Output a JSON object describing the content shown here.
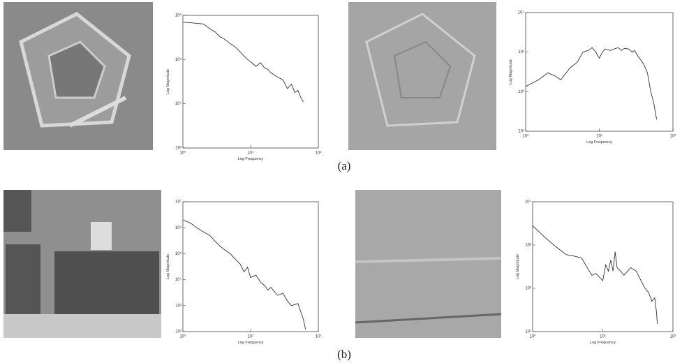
{
  "chart_data": [
    {
      "type": "line",
      "x_label": "Log Frequency",
      "y_label": "Log Magnitude",
      "log_x": true,
      "log_y": true,
      "color": "#333333",
      "xlim": [
        1,
        100
      ],
      "xticks": [
        {
          "value": 1,
          "label": "10⁰"
        },
        {
          "value": 10,
          "label": "10¹"
        },
        {
          "value": 100,
          "label": "10²"
        }
      ],
      "ylim": [
        1000,
        1000000
      ],
      "yticks": [
        {
          "value": 1000,
          "label": "10³"
        },
        {
          "value": 10000,
          "label": "10⁴"
        },
        {
          "value": 100000,
          "label": "10⁵"
        },
        {
          "value": 1000000,
          "label": "10⁶"
        }
      ],
      "x": [
        1,
        1.3,
        1.6,
        2,
        2.5,
        3,
        3.5,
        4,
        5,
        6,
        7,
        8,
        9,
        10,
        12,
        14,
        16,
        18,
        20,
        25,
        30,
        35,
        40,
        45,
        50,
        55,
        60
      ],
      "values": [
        700000,
        680000,
        660000,
        640000,
        500000,
        420000,
        330000,
        300000,
        230000,
        190000,
        150000,
        120000,
        100000,
        90000,
        70000,
        85000,
        65000,
        60000,
        50000,
        40000,
        35000,
        22000,
        28000,
        18000,
        20000,
        14000,
        11000
      ]
    },
    {
      "type": "line",
      "x_label": "Log Frequency",
      "y_label": "Log Magnitude",
      "log_x": true,
      "log_y": true,
      "color": "#333333",
      "xlim": [
        1,
        100
      ],
      "xticks": [
        {
          "value": 1,
          "label": "10⁰"
        },
        {
          "value": 10,
          "label": "10¹"
        },
        {
          "value": 100,
          "label": "10²"
        }
      ],
      "ylim": [
        10,
        10000
      ],
      "yticks": [
        {
          "value": 10,
          "label": "10¹"
        },
        {
          "value": 100,
          "label": "10²"
        },
        {
          "value": 1000,
          "label": "10³"
        },
        {
          "value": 10000,
          "label": "10⁴"
        }
      ],
      "x": [
        1,
        1.5,
        2,
        2.5,
        3,
        4,
        5,
        6,
        7,
        8,
        9,
        10,
        11,
        12,
        14,
        16,
        18,
        20,
        22,
        25,
        28,
        30,
        35,
        40,
        45,
        50,
        55,
        60
      ],
      "values": [
        135,
        200,
        300,
        250,
        200,
        400,
        550,
        1000,
        1100,
        1300,
        1000,
        700,
        1000,
        1200,
        1100,
        1200,
        1300,
        1100,
        1250,
        1200,
        1000,
        1100,
        700,
        500,
        300,
        100,
        50,
        20
      ]
    },
    {
      "type": "line",
      "x_label": "Log Frequency",
      "y_label": "Log Magnitude",
      "log_x": true,
      "log_y": true,
      "color": "#333333",
      "xlim": [
        1,
        100
      ],
      "xticks": [
        {
          "value": 1,
          "label": "10⁰"
        },
        {
          "value": 10,
          "label": "10¹"
        },
        {
          "value": 100,
          "label": "10²"
        }
      ],
      "ylim": [
        100,
        10000000
      ],
      "yticks": [
        {
          "value": 100,
          "label": "10²"
        },
        {
          "value": 1000,
          "label": "10³"
        },
        {
          "value": 10000,
          "label": "10⁴"
        },
        {
          "value": 100000,
          "label": "10⁵"
        },
        {
          "value": 1000000,
          "label": "10⁶"
        },
        {
          "value": 10000000,
          "label": "10⁷"
        }
      ],
      "x": [
        1,
        1.3,
        1.6,
        2,
        2.5,
        3,
        3.5,
        4,
        5,
        6,
        7,
        8,
        9,
        10,
        12,
        14,
        16,
        18,
        20,
        25,
        30,
        35,
        40,
        50,
        60,
        65
      ],
      "values": [
        2000000,
        1500000,
        1000000,
        700000,
        500000,
        300000,
        200000,
        150000,
        100000,
        60000,
        40000,
        20000,
        30000,
        12000,
        15000,
        8000,
        6000,
        4000,
        5000,
        2500,
        3000,
        1500,
        1000,
        1200,
        300,
        120
      ]
    },
    {
      "type": "line",
      "x_label": "Log Frequency",
      "y_label": "Log Magnitude",
      "log_x": true,
      "log_y": true,
      "color": "#333333",
      "xlim": [
        1,
        100
      ],
      "xticks": [
        {
          "value": 1,
          "label": "10⁰"
        },
        {
          "value": 10,
          "label": "10¹"
        },
        {
          "value": 100,
          "label": "10²"
        }
      ],
      "ylim": [
        10,
        10000
      ],
      "yticks": [
        {
          "value": 10,
          "label": "10¹"
        },
        {
          "value": 100,
          "label": "10²"
        },
        {
          "value": 1000,
          "label": "10³"
        },
        {
          "value": 10000,
          "label": "10⁴"
        }
      ],
      "x": [
        1,
        1.5,
        2,
        3,
        4,
        5,
        6,
        7,
        8,
        10,
        11,
        12,
        13,
        14,
        15,
        16,
        18,
        20,
        25,
        30,
        35,
        40,
        45,
        50,
        55,
        58,
        60
      ],
      "values": [
        2800,
        1500,
        1000,
        600,
        550,
        500,
        300,
        200,
        220,
        150,
        350,
        250,
        450,
        250,
        700,
        300,
        250,
        200,
        300,
        250,
        150,
        100,
        80,
        50,
        60,
        30,
        15
      ]
    }
  ],
  "captions": [
    "(a)",
    "(b)"
  ]
}
